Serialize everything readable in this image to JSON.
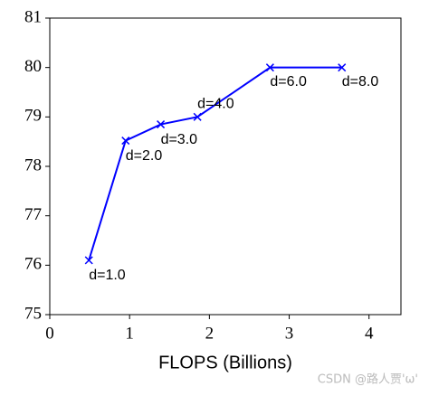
{
  "chart_data": {
    "type": "line",
    "x": [
      0.49,
      0.95,
      1.39,
      1.85,
      2.76,
      3.66
    ],
    "series": [
      {
        "color": "#0000ff",
        "marker": "x",
        "values": [
          76.1,
          78.52,
          78.85,
          79.0,
          80.0,
          80.0
        ]
      }
    ],
    "annotations": [
      "d=1.0",
      "d=2.0",
      "d=3.0",
      "d=4.0",
      "d=6.0",
      "d=8.0"
    ],
    "xlabel": "FLOPS (Billions)",
    "xlim": [
      0,
      4.4
    ],
    "xticks": [
      0,
      1,
      2,
      3,
      4
    ],
    "ylim": [
      75,
      81
    ],
    "yticks": [
      75,
      76,
      77,
      78,
      79,
      80,
      81
    ],
    "watermark": "CSDN @路人贾'ω'"
  }
}
